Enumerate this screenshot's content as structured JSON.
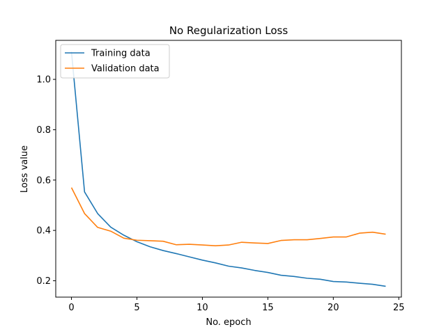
{
  "chart_data": {
    "type": "line",
    "title": "No Regularization Loss",
    "xlabel": "No. epoch",
    "ylabel": "Loss value",
    "xlim": [
      -1.2,
      25.2
    ],
    "ylim": [
      0.135,
      1.155
    ],
    "xticks": [
      0,
      5,
      10,
      15,
      20,
      25
    ],
    "yticks": [
      0.2,
      0.4,
      0.6,
      0.8,
      1.0
    ],
    "ytick_labels": [
      "0.2",
      "0.4",
      "0.6",
      "0.8",
      "1.0"
    ],
    "grid": false,
    "legend_position": "top-left",
    "x": [
      0,
      1,
      2,
      3,
      4,
      5,
      6,
      7,
      8,
      9,
      10,
      11,
      12,
      13,
      14,
      15,
      16,
      17,
      18,
      19,
      20,
      21,
      22,
      23,
      24
    ],
    "series": [
      {
        "name": "Training data",
        "color": "#1f77b4",
        "values": [
          1.11,
          0.553,
          0.467,
          0.413,
          0.381,
          0.355,
          0.335,
          0.32,
          0.308,
          0.295,
          0.282,
          0.271,
          0.258,
          0.251,
          0.241,
          0.233,
          0.222,
          0.217,
          0.21,
          0.206,
          0.197,
          0.195,
          0.19,
          0.186,
          0.178
        ]
      },
      {
        "name": "Validation data",
        "color": "#ff7f0e",
        "values": [
          0.57,
          0.467,
          0.412,
          0.397,
          0.369,
          0.361,
          0.359,
          0.357,
          0.343,
          0.345,
          0.342,
          0.339,
          0.342,
          0.353,
          0.35,
          0.348,
          0.36,
          0.363,
          0.363,
          0.368,
          0.374,
          0.374,
          0.389,
          0.393,
          0.385
        ]
      }
    ]
  }
}
